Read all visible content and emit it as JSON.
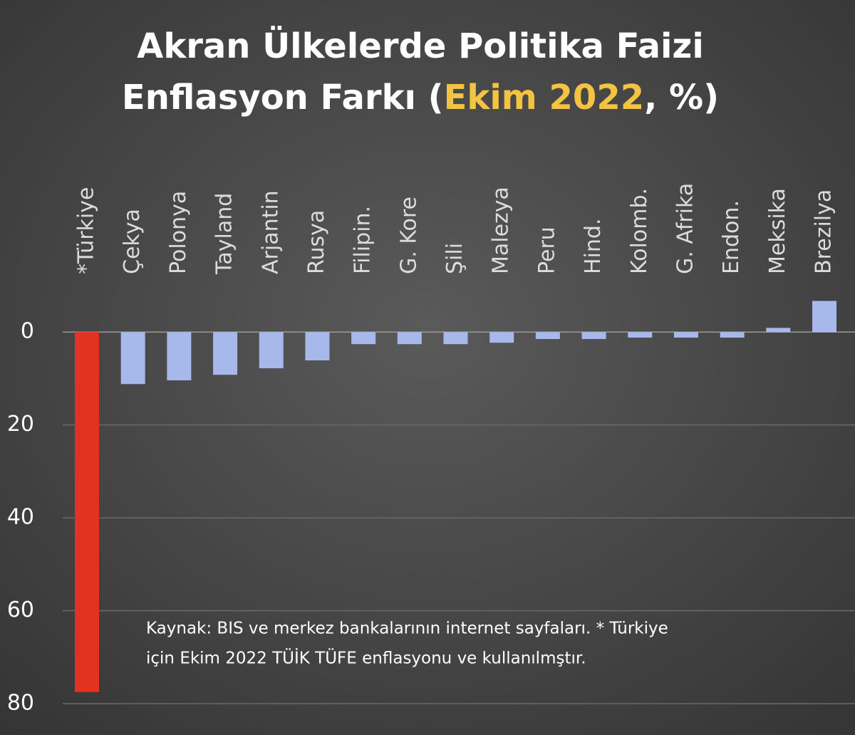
{
  "chart_data": {
    "type": "bar",
    "title": [
      "Akran Ülkelerde Politika Faizi",
      [
        "Enflasyon Farkı (",
        "Ekim 2022",
        ", %)"
      ]
    ],
    "title_highlight_color": "#f5c342",
    "categories": [
      "*Türkiye",
      "Çekya",
      "Polonya",
      "Tayland",
      "Arjantin",
      "Rusya",
      "Filipin.",
      "G. Kore",
      "Şili",
      "Malezya",
      "Peru",
      "Hind.",
      "Kolomb.",
      "G. Afrika",
      "Endon.",
      "Meksika",
      "Brezilya"
    ],
    "values": [
      -77.5,
      -11.2,
      -10.4,
      -9.2,
      -7.8,
      -6.1,
      -2.6,
      -2.6,
      -2.6,
      -2.3,
      -1.5,
      -1.5,
      -1.2,
      -1.2,
      -1.2,
      0.9,
      6.7
    ],
    "colors": [
      "#e3321f",
      "#a7b8ea",
      "#a7b8ea",
      "#a7b8ea",
      "#a7b8ea",
      "#a7b8ea",
      "#a7b8ea",
      "#a7b8ea",
      "#a7b8ea",
      "#a7b8ea",
      "#a7b8ea",
      "#a7b8ea",
      "#a7b8ea",
      "#a7b8ea",
      "#a7b8ea",
      "#a7b8ea",
      "#a7b8ea"
    ],
    "ylim": [
      -80,
      10
    ],
    "yticks": [
      {
        "value": 0,
        "label": "0"
      },
      {
        "value": -20,
        "label": "20"
      },
      {
        "value": -40,
        "label": "40"
      },
      {
        "value": -60,
        "label": "60"
      },
      {
        "value": -80,
        "label": "80"
      }
    ],
    "grid": true,
    "note": [
      "Kaynak: BIS ve merkez bankalarının internet sayfaları. * Türkiye",
      "için Ekim 2022 TÜİK TÜFE enflasyonu ve kullanılmştır."
    ]
  }
}
